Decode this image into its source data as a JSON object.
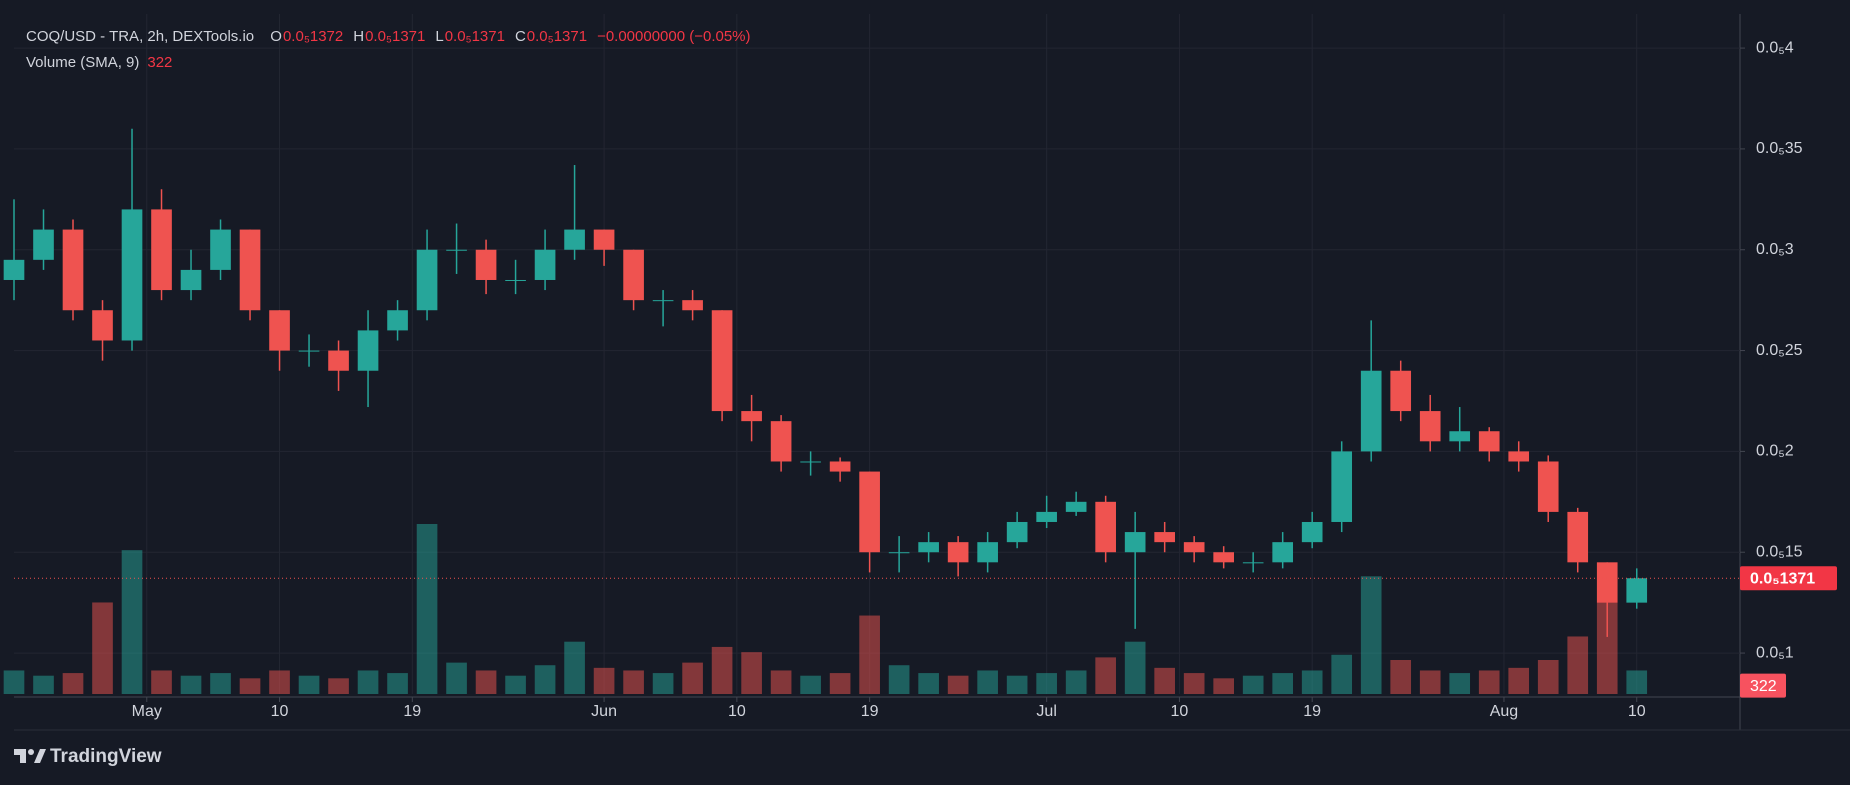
{
  "header": {
    "symbol": "COQ/USD - TRA, 2h, DEXTools.io",
    "ohlc": [
      {
        "key": "O",
        "value": "0.0₅1372"
      },
      {
        "key": "H",
        "value": "0.0₅1371"
      },
      {
        "key": "L",
        "value": "0.0₅1371"
      },
      {
        "key": "C",
        "value": "0.0₅1371"
      }
    ],
    "change": "−0.00000000 (−0.05%)",
    "volume_label": "Volume (SMA, 9)"
  },
  "footer": "TradingView",
  "chart_data": {
    "type": "candlestick",
    "x": [
      "--04-22",
      "--04-24",
      "--04-26",
      "--04-28",
      "--04-30",
      "--05-02",
      "--05-04",
      "--05-06",
      "--05-08",
      "--05-10",
      "--05-12",
      "--05-14",
      "--05-16",
      "--05-18",
      "--05-20",
      "--05-22",
      "--05-24",
      "--05-26",
      "--05-28",
      "--05-30",
      "--06-01",
      "--06-03",
      "--06-05",
      "--06-07",
      "--06-09",
      "--06-11",
      "--06-13",
      "--06-15",
      "--06-17",
      "--06-19",
      "--06-21",
      "--06-23",
      "--06-25",
      "--06-27",
      "--06-29",
      "--07-01",
      "--07-03",
      "--07-05",
      "--07-07",
      "--07-09",
      "--07-11",
      "--07-13",
      "--07-15",
      "--07-17",
      "--07-19",
      "--07-21",
      "--07-23",
      "--07-25",
      "--07-27",
      "--07-29",
      "--07-31",
      "--08-02",
      "--08-04",
      "--08-06",
      "--08-08",
      "--08-10"
    ],
    "open": [
      2.85e-06,
      2.95e-06,
      3.1e-06,
      2.7e-06,
      2.55e-06,
      3.2e-06,
      2.8e-06,
      2.9e-06,
      3.1e-06,
      2.7e-06,
      2.5e-06,
      2.5e-06,
      2.4e-06,
      2.6e-06,
      2.7e-06,
      3e-06,
      3e-06,
      2.85e-06,
      2.85e-06,
      3e-06,
      3.1e-06,
      3e-06,
      2.75e-06,
      2.75e-06,
      2.7e-06,
      2.2e-06,
      2.15e-06,
      1.95e-06,
      1.95e-06,
      1.9e-06,
      1.5e-06,
      1.5e-06,
      1.55e-06,
      1.45e-06,
      1.55e-06,
      1.65e-06,
      1.7e-06,
      1.75e-06,
      1.5e-06,
      1.6e-06,
      1.55e-06,
      1.5e-06,
      1.45e-06,
      1.45e-06,
      1.55e-06,
      1.65e-06,
      2e-06,
      2.4e-06,
      2.2e-06,
      2.05e-06,
      2.1e-06,
      2e-06,
      1.95e-06,
      1.7e-06,
      1.45e-06,
      1.25e-06
    ],
    "high": [
      3.25e-06,
      3.2e-06,
      3.15e-06,
      2.75e-06,
      3.6e-06,
      3.3e-06,
      3e-06,
      3.15e-06,
      3.1e-06,
      2.7e-06,
      2.58e-06,
      2.55e-06,
      2.7e-06,
      2.75e-06,
      3.1e-06,
      3.13e-06,
      3.05e-06,
      2.95e-06,
      3.1e-06,
      3.42e-06,
      3.1e-06,
      3e-06,
      2.8e-06,
      2.8e-06,
      2.7e-06,
      2.28e-06,
      2.18e-06,
      2e-06,
      1.97e-06,
      1.9e-06,
      1.58e-06,
      1.6e-06,
      1.58e-06,
      1.6e-06,
      1.7e-06,
      1.78e-06,
      1.8e-06,
      1.78e-06,
      1.7e-06,
      1.65e-06,
      1.58e-06,
      1.53e-06,
      1.5e-06,
      1.6e-06,
      1.7e-06,
      2.05e-06,
      2.65e-06,
      2.45e-06,
      2.28e-06,
      2.22e-06,
      2.12e-06,
      2.05e-06,
      1.98e-06,
      1.72e-06,
      1.45e-06,
      1.42e-06
    ],
    "low": [
      2.75e-06,
      2.9e-06,
      2.65e-06,
      2.45e-06,
      2.5e-06,
      2.75e-06,
      2.75e-06,
      2.85e-06,
      2.65e-06,
      2.4e-06,
      2.42e-06,
      2.3e-06,
      2.22e-06,
      2.55e-06,
      2.65e-06,
      2.88e-06,
      2.78e-06,
      2.78e-06,
      2.8e-06,
      2.95e-06,
      2.92e-06,
      2.7e-06,
      2.62e-06,
      2.65e-06,
      2.15e-06,
      2.05e-06,
      1.9e-06,
      1.88e-06,
      1.85e-06,
      1.4e-06,
      1.4e-06,
      1.45e-06,
      1.38e-06,
      1.4e-06,
      1.52e-06,
      1.62e-06,
      1.68e-06,
      1.45e-06,
      1.12e-06,
      1.5e-06,
      1.45e-06,
      1.42e-06,
      1.4e-06,
      1.42e-06,
      1.52e-06,
      1.6e-06,
      1.95e-06,
      2.15e-06,
      2e-06,
      2e-06,
      1.95e-06,
      1.9e-06,
      1.65e-06,
      1.4e-06,
      1.08e-06,
      1.22e-06
    ],
    "close": [
      2.95e-06,
      3.1e-06,
      2.7e-06,
      2.55e-06,
      3.2e-06,
      2.8e-06,
      2.9e-06,
      3.1e-06,
      2.7e-06,
      2.5e-06,
      2.5e-06,
      2.4e-06,
      2.6e-06,
      2.7e-06,
      3e-06,
      3e-06,
      2.85e-06,
      2.85e-06,
      3e-06,
      3.1e-06,
      3e-06,
      2.75e-06,
      2.75e-06,
      2.7e-06,
      2.2e-06,
      2.15e-06,
      1.95e-06,
      1.95e-06,
      1.9e-06,
      1.5e-06,
      1.5e-06,
      1.55e-06,
      1.45e-06,
      1.55e-06,
      1.65e-06,
      1.7e-06,
      1.75e-06,
      1.5e-06,
      1.6e-06,
      1.55e-06,
      1.5e-06,
      1.45e-06,
      1.45e-06,
      1.55e-06,
      1.65e-06,
      2e-06,
      2.4e-06,
      2.2e-06,
      2.05e-06,
      2.1e-06,
      2e-06,
      1.95e-06,
      1.7e-06,
      1.45e-06,
      1.25e-06,
      1.371e-06
    ],
    "volume": [
      900,
      700,
      800,
      3500,
      5500,
      900,
      700,
      800,
      600,
      900,
      700,
      600,
      900,
      800,
      6500,
      1200,
      900,
      700,
      1100,
      2000,
      1000,
      900,
      800,
      1200,
      1800,
      1600,
      900,
      700,
      800,
      3000,
      1100,
      800,
      700,
      900,
      700,
      800,
      900,
      1400,
      2000,
      1000,
      800,
      600,
      700,
      800,
      900,
      1500,
      4500,
      1300,
      900,
      800,
      900,
      1000,
      1300,
      2200,
      3500,
      900
    ],
    "up_color": "#26a69a",
    "down_color": "#ef5350",
    "xlim": [
      "--04-22",
      "--08-17"
    ],
    "xticks": [
      {
        "value": "--05-01",
        "label": "May"
      },
      {
        "value": "--05-10",
        "label": "10"
      },
      {
        "value": "--05-19",
        "label": "19"
      },
      {
        "value": "--06-01",
        "label": "Jun"
      },
      {
        "value": "--06-10",
        "label": "10"
      },
      {
        "value": "--06-19",
        "label": "19"
      },
      {
        "value": "--07-01",
        "label": "Jul"
      },
      {
        "value": "--07-10",
        "label": "10"
      },
      {
        "value": "--07-19",
        "label": "19"
      },
      {
        "value": "--08-01",
        "label": "Aug"
      },
      {
        "value": "--08-10",
        "label": "10"
      }
    ],
    "ylim": [
      7.97e-07,
      4.169e-06
    ],
    "yticks": [
      {
        "value": 1e-06,
        "label": "0.0₅1"
      },
      {
        "value": 1.5e-06,
        "label": "0.0₅15"
      },
      {
        "value": 2e-06,
        "label": "0.0₅2"
      },
      {
        "value": 2.5e-06,
        "label": "0.0₅25"
      },
      {
        "value": 3e-06,
        "label": "0.0₅3"
      },
      {
        "value": 3.5e-06,
        "label": "0.0₅35"
      },
      {
        "value": 4e-06,
        "label": "0.0₅4"
      }
    ],
    "vlim": [
      0,
      26000
    ],
    "last_price": {
      "value": 1.371e-06,
      "label": "0.0₅1371"
    },
    "last_volume": 322,
    "grid": true
  }
}
